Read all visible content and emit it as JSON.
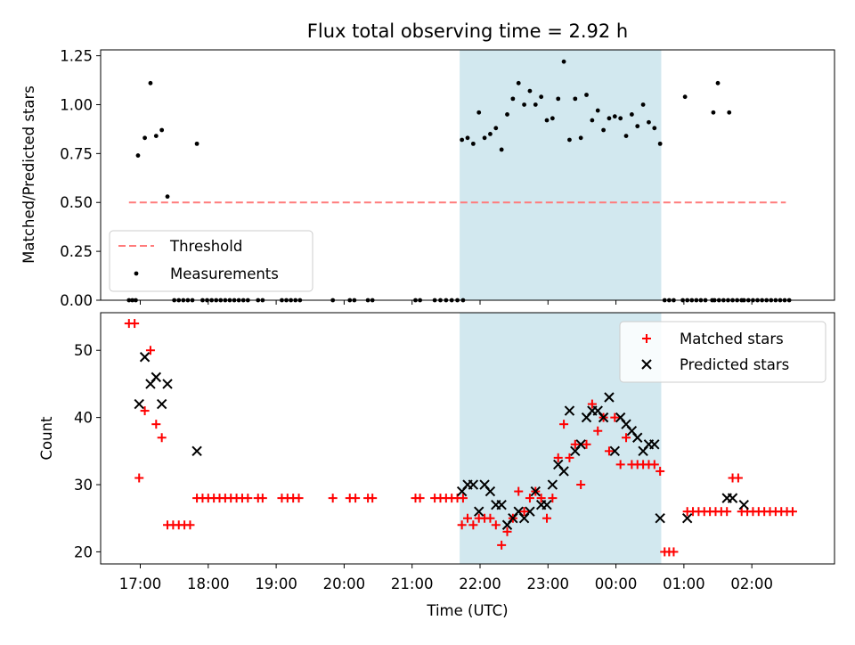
{
  "title": "Flux total observing time = 2.92 h",
  "chart_data": [
    {
      "type": "scatter",
      "ylabel": "Matched/Predicted stars",
      "ylim": [
        0,
        1.28
      ],
      "yticks": [
        "0.00",
        "0.25",
        "0.50",
        "0.75",
        "1.00",
        "1.25"
      ],
      "xlim": [
        "16:25",
        "27:13"
      ],
      "shaded_region": [
        "21:42",
        "24:40"
      ],
      "shade_color": "#d2e8ef",
      "legend_position": "lower-left",
      "threshold": {
        "name": "Threshold",
        "y": 0.5,
        "x": [
          "16:50",
          "26:30"
        ],
        "color": "#ff7b7b"
      },
      "series": [
        {
          "name": "Measurements",
          "color": "#000000",
          "points": [
            [
              "16:50",
              0
            ],
            [
              "16:53",
              0
            ],
            [
              "16:56",
              0
            ],
            [
              "16:58",
              0.74
            ],
            [
              "17:04",
              0.83
            ],
            [
              "17:09",
              1.11
            ],
            [
              "17:14",
              0.84
            ],
            [
              "17:19",
              0.87
            ],
            [
              "17:24",
              0.53
            ],
            [
              "17:30",
              0
            ],
            [
              "17:34",
              0
            ],
            [
              "17:38",
              0
            ],
            [
              "17:42",
              0
            ],
            [
              "17:46",
              0
            ],
            [
              "17:50",
              0.8
            ],
            [
              "17:55",
              0
            ],
            [
              "17:59",
              0
            ],
            [
              "18:03",
              0
            ],
            [
              "18:07",
              0
            ],
            [
              "18:11",
              0
            ],
            [
              "18:15",
              0
            ],
            [
              "18:19",
              0
            ],
            [
              "18:23",
              0
            ],
            [
              "18:27",
              0
            ],
            [
              "18:31",
              0
            ],
            [
              "18:35",
              0
            ],
            [
              "18:44",
              0
            ],
            [
              "18:48",
              0
            ],
            [
              "19:05",
              0
            ],
            [
              "19:09",
              0
            ],
            [
              "19:13",
              0
            ],
            [
              "19:17",
              0
            ],
            [
              "19:21",
              0
            ],
            [
              "19:50",
              0
            ],
            [
              "20:05",
              0
            ],
            [
              "20:09",
              0
            ],
            [
              "20:21",
              0
            ],
            [
              "20:25",
              0
            ],
            [
              "21:03",
              0
            ],
            [
              "21:07",
              0
            ],
            [
              "21:20",
              0
            ],
            [
              "21:25",
              0
            ],
            [
              "21:30",
              0
            ],
            [
              "21:35",
              0
            ],
            [
              "21:40",
              0
            ],
            [
              "21:45",
              0
            ],
            [
              "21:44",
              0.82
            ],
            [
              "21:49",
              0.83
            ],
            [
              "21:54",
              0.8
            ],
            [
              "21:59",
              0.96
            ],
            [
              "22:04",
              0.83
            ],
            [
              "22:09",
              0.85
            ],
            [
              "22:14",
              0.88
            ],
            [
              "22:19",
              0.77
            ],
            [
              "22:24",
              0.95
            ],
            [
              "22:29",
              1.03
            ],
            [
              "22:34",
              1.11
            ],
            [
              "22:39",
              1.0
            ],
            [
              "22:44",
              1.07
            ],
            [
              "22:49",
              1.0
            ],
            [
              "22:54",
              1.04
            ],
            [
              "22:59",
              0.92
            ],
            [
              "23:04",
              0.93
            ],
            [
              "23:09",
              1.03
            ],
            [
              "23:14",
              1.22
            ],
            [
              "23:19",
              0.82
            ],
            [
              "23:24",
              1.03
            ],
            [
              "23:29",
              0.83
            ],
            [
              "23:34",
              1.05
            ],
            [
              "23:39",
              0.92
            ],
            [
              "23:44",
              0.97
            ],
            [
              "23:49",
              0.87
            ],
            [
              "23:54",
              0.93
            ],
            [
              "23:59",
              0.94
            ],
            [
              "24:04",
              0.93
            ],
            [
              "24:09",
              0.84
            ],
            [
              "24:14",
              0.95
            ],
            [
              "24:19",
              0.89
            ],
            [
              "24:24",
              1.0
            ],
            [
              "24:29",
              0.91
            ],
            [
              "24:34",
              0.88
            ],
            [
              "24:39",
              0.8
            ],
            [
              "24:43",
              0
            ],
            [
              "24:47",
              0
            ],
            [
              "24:51",
              0
            ],
            [
              "24:59",
              0
            ],
            [
              "25:03",
              0
            ],
            [
              "25:07",
              0
            ],
            [
              "25:11",
              0
            ],
            [
              "25:15",
              0
            ],
            [
              "25:19",
              0
            ],
            [
              "25:01",
              1.04
            ],
            [
              "25:27",
              0
            ],
            [
              "25:31",
              0
            ],
            [
              "25:35",
              0
            ],
            [
              "25:39",
              0
            ],
            [
              "25:43",
              0
            ],
            [
              "25:47",
              0
            ],
            [
              "25:51",
              0
            ],
            [
              "25:25",
              0
            ],
            [
              "25:26",
              0.96
            ],
            [
              "25:30",
              1.11
            ],
            [
              "25:40",
              0.96
            ],
            [
              "25:53",
              0
            ],
            [
              "25:57",
              0
            ],
            [
              "26:01",
              0
            ],
            [
              "26:05",
              0
            ],
            [
              "26:09",
              0
            ],
            [
              "26:13",
              0
            ],
            [
              "26:17",
              0
            ],
            [
              "26:21",
              0
            ],
            [
              "26:25",
              0
            ],
            [
              "26:29",
              0
            ],
            [
              "26:33",
              0
            ]
          ]
        }
      ]
    },
    {
      "type": "scatter",
      "ylabel": "Count",
      "xlabel": "Time (UTC)",
      "ylim": [
        18.2,
        55.6
      ],
      "yticks": [
        "20",
        "30",
        "40",
        "50"
      ],
      "xticks": [
        "17:00",
        "18:00",
        "19:00",
        "20:00",
        "21:00",
        "22:00",
        "23:00",
        "00:00",
        "01:00",
        "02:00"
      ],
      "xlim": [
        "16:25",
        "27:13"
      ],
      "shaded_region": [
        "21:42",
        "24:40"
      ],
      "shade_color": "#d2e8ef",
      "legend_position": "upper-right",
      "series": [
        {
          "name": "Matched stars",
          "color": "#ff0000",
          "marker": "+",
          "points": [
            [
              "16:50",
              54
            ],
            [
              "16:55",
              54
            ],
            [
              "16:59",
              31
            ],
            [
              "17:04",
              41
            ],
            [
              "17:09",
              50
            ],
            [
              "17:14",
              39
            ],
            [
              "17:19",
              37
            ],
            [
              "17:24",
              24
            ],
            [
              "17:29",
              24
            ],
            [
              "17:34",
              24
            ],
            [
              "17:39",
              24
            ],
            [
              "17:44",
              24
            ],
            [
              "17:50",
              28
            ],
            [
              "17:55",
              28
            ],
            [
              "18:00",
              28
            ],
            [
              "18:05",
              28
            ],
            [
              "18:10",
              28
            ],
            [
              "18:15",
              28
            ],
            [
              "18:20",
              28
            ],
            [
              "18:25",
              28
            ],
            [
              "18:30",
              28
            ],
            [
              "18:35",
              28
            ],
            [
              "18:44",
              28
            ],
            [
              "18:48",
              28
            ],
            [
              "19:05",
              28
            ],
            [
              "19:10",
              28
            ],
            [
              "19:15",
              28
            ],
            [
              "19:20",
              28
            ],
            [
              "19:50",
              28
            ],
            [
              "20:05",
              28
            ],
            [
              "20:10",
              28
            ],
            [
              "20:21",
              28
            ],
            [
              "20:25",
              28
            ],
            [
              "21:03",
              28
            ],
            [
              "21:07",
              28
            ],
            [
              "21:20",
              28
            ],
            [
              "21:25",
              28
            ],
            [
              "21:30",
              28
            ],
            [
              "21:35",
              28
            ],
            [
              "21:40",
              28
            ],
            [
              "21:45",
              28
            ],
            [
              "21:44",
              24
            ],
            [
              "21:49",
              25
            ],
            [
              "21:54",
              24
            ],
            [
              "21:59",
              25
            ],
            [
              "22:04",
              25
            ],
            [
              "22:09",
              25
            ],
            [
              "22:14",
              24
            ],
            [
              "22:19",
              21
            ],
            [
              "22:24",
              23
            ],
            [
              "22:29",
              25
            ],
            [
              "22:34",
              29
            ],
            [
              "22:39",
              26
            ],
            [
              "22:44",
              28
            ],
            [
              "22:49",
              29
            ],
            [
              "22:54",
              28
            ],
            [
              "22:59",
              25
            ],
            [
              "23:04",
              28
            ],
            [
              "23:09",
              34
            ],
            [
              "23:14",
              39
            ],
            [
              "23:19",
              34
            ],
            [
              "23:24",
              36
            ],
            [
              "23:29",
              30
            ],
            [
              "23:34",
              36
            ],
            [
              "23:39",
              42
            ],
            [
              "23:44",
              38
            ],
            [
              "23:49",
              40
            ],
            [
              "23:54",
              35
            ],
            [
              "23:59",
              40
            ],
            [
              "24:04",
              33
            ],
            [
              "24:09",
              37
            ],
            [
              "24:14",
              33
            ],
            [
              "24:19",
              33
            ],
            [
              "24:24",
              33
            ],
            [
              "24:29",
              33
            ],
            [
              "24:34",
              33
            ],
            [
              "24:39",
              32
            ],
            [
              "24:43",
              20
            ],
            [
              "24:47",
              20
            ],
            [
              "24:51",
              20
            ],
            [
              "25:03",
              26
            ],
            [
              "25:08",
              26
            ],
            [
              "25:13",
              26
            ],
            [
              "25:18",
              26
            ],
            [
              "25:23",
              26
            ],
            [
              "25:28",
              26
            ],
            [
              "25:33",
              26
            ],
            [
              "25:38",
              26
            ],
            [
              "25:43",
              31
            ],
            [
              "25:48",
              31
            ],
            [
              "25:51",
              26
            ],
            [
              "25:56",
              26
            ],
            [
              "26:01",
              26
            ],
            [
              "26:06",
              26
            ],
            [
              "26:11",
              26
            ],
            [
              "26:16",
              26
            ],
            [
              "26:21",
              26
            ],
            [
              "26:26",
              26
            ],
            [
              "26:31",
              26
            ],
            [
              "26:36",
              26
            ]
          ]
        },
        {
          "name": "Predicted stars",
          "color": "#000000",
          "marker": "x",
          "points": [
            [
              "16:59",
              42
            ],
            [
              "17:04",
              49
            ],
            [
              "17:09",
              45
            ],
            [
              "17:14",
              46
            ],
            [
              "17:19",
              42
            ],
            [
              "17:24",
              45
            ],
            [
              "17:50",
              35
            ],
            [
              "21:44",
              29
            ],
            [
              "21:49",
              30
            ],
            [
              "21:54",
              30
            ],
            [
              "21:59",
              26
            ],
            [
              "22:04",
              30
            ],
            [
              "22:09",
              29
            ],
            [
              "22:14",
              27
            ],
            [
              "22:19",
              27
            ],
            [
              "22:24",
              24
            ],
            [
              "22:29",
              25
            ],
            [
              "22:34",
              26
            ],
            [
              "22:39",
              25
            ],
            [
              "22:44",
              26
            ],
            [
              "22:49",
              29
            ],
            [
              "22:54",
              27
            ],
            [
              "22:59",
              27
            ],
            [
              "23:04",
              30
            ],
            [
              "23:09",
              33
            ],
            [
              "23:14",
              32
            ],
            [
              "23:19",
              41
            ],
            [
              "23:24",
              35
            ],
            [
              "23:29",
              36
            ],
            [
              "23:34",
              40
            ],
            [
              "23:39",
              41
            ],
            [
              "23:44",
              41
            ],
            [
              "23:49",
              40
            ],
            [
              "23:54",
              43
            ],
            [
              "23:59",
              35
            ],
            [
              "24:04",
              40
            ],
            [
              "24:09",
              39
            ],
            [
              "24:14",
              38
            ],
            [
              "24:19",
              37
            ],
            [
              "24:24",
              35
            ],
            [
              "24:29",
              36
            ],
            [
              "24:34",
              36
            ],
            [
              "24:39",
              25
            ],
            [
              "25:03",
              25
            ],
            [
              "25:38",
              28
            ],
            [
              "25:43",
              28
            ],
            [
              "25:53",
              27
            ]
          ]
        }
      ]
    }
  ]
}
